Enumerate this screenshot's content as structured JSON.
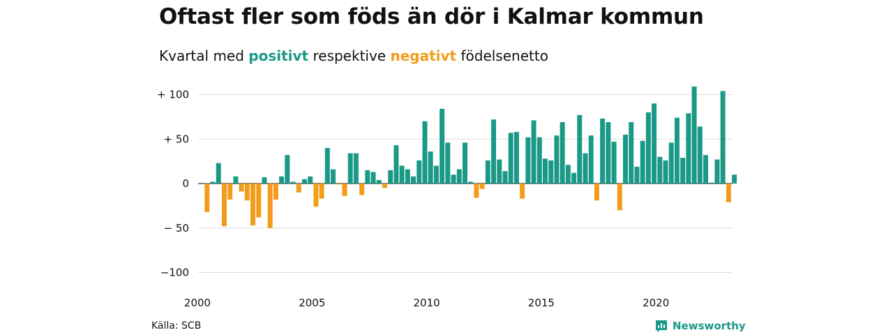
{
  "title": "Oftast fler som föds än dör i Kalmar kommun",
  "subtitle": {
    "before": "Kvartal med ",
    "positive": "positivt",
    "middle": " respektive ",
    "negative": "negativt",
    "after": " födelsenetto"
  },
  "source": "Källa: SCB",
  "brand": "Newsworthy",
  "colors": {
    "positive": "#1a9987",
    "negative": "#f39c1a",
    "grid": "#dddddd",
    "zero": "#333333"
  },
  "chart_data": {
    "type": "bar",
    "grid": true,
    "x_start": "2000 Q1",
    "x_ticks": [
      "2000",
      "2005",
      "2010",
      "2015",
      "2020"
    ],
    "y_ticks": [
      {
        "value": 100,
        "label": "+ 100"
      },
      {
        "value": 50,
        "label": "+  50"
      },
      {
        "value": 0,
        "label": "0"
      },
      {
        "value": -50,
        "label": "− 50"
      },
      {
        "value": -100,
        "label": "−100"
      }
    ],
    "ylim": [
      -100,
      100
    ],
    "values": [
      -32,
      2,
      23,
      -48,
      -18,
      8,
      -9,
      -19,
      -47,
      -38,
      7,
      -50,
      -18,
      8,
      32,
      2,
      -10,
      5,
      8,
      -26,
      -17,
      40,
      16,
      -1,
      -14,
      34,
      34,
      -13,
      15,
      13,
      4,
      -5,
      15,
      43,
      20,
      16,
      8,
      26,
      70,
      36,
      20,
      84,
      46,
      10,
      16,
      46,
      2,
      -16,
      -6,
      26,
      72,
      27,
      14,
      57,
      58,
      -17,
      52,
      71,
      52,
      28,
      26,
      54,
      69,
      21,
      12,
      77,
      34,
      54,
      -19,
      73,
      69,
      47,
      -30,
      55,
      69,
      19,
      48,
      80,
      90,
      30,
      26,
      46,
      74,
      29,
      79,
      109,
      64,
      32,
      1,
      27,
      104,
      -21,
      10
    ]
  }
}
